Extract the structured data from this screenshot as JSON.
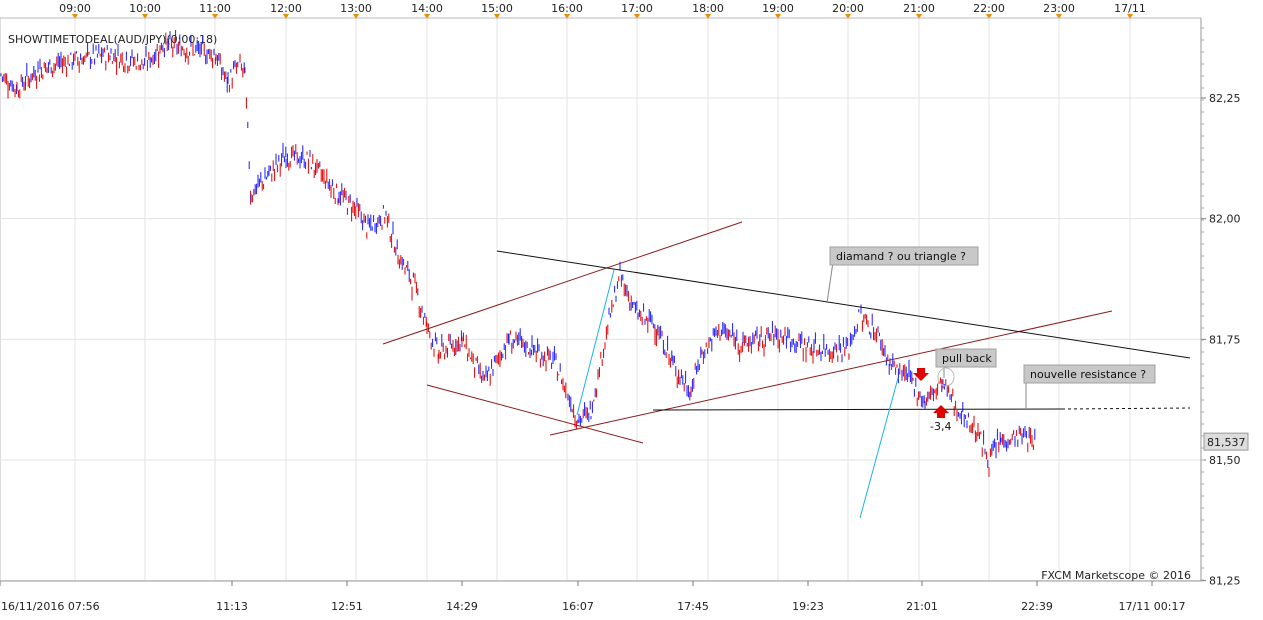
{
  "chart_data": {
    "type": "candlestick",
    "title": "SHOWTIMETODEAL(AUD/JPY)(0:00:18)",
    "watermark": "FXCM Marketscope © 2016",
    "top_time_ticks": [
      "09:00",
      "10:00",
      "11:00",
      "12:00",
      "13:00",
      "14:00",
      "15:00",
      "16:00",
      "17:00",
      "18:00",
      "19:00",
      "20:00",
      "21:00",
      "22:00",
      "23:00",
      "17/11"
    ],
    "bottom_time_ticks": [
      "16/11/2016 07:56",
      "11:13",
      "12:51",
      "14:29",
      "16:07",
      "17:45",
      "19:23",
      "21:01",
      "22:39",
      "17/11 00:17"
    ],
    "y_ticks": [
      "82,25",
      "82,00",
      "81,75",
      "81,50",
      "81,25"
    ],
    "y_tick_values": [
      82.25,
      82.0,
      81.75,
      81.5,
      81.25
    ],
    "ylim": [
      81.25,
      82.38
    ],
    "last_price_label": "81,537",
    "last_price": 81.537,
    "grid": true,
    "colors": {
      "up": "#1a1aff",
      "down": "#e00000",
      "last_price_bg": "#dddddd",
      "annotation_bg": "#c8c8c8",
      "marker": "#f08c00"
    },
    "annotations": [
      {
        "text": "diamand ? ou  triangle ?"
      },
      {
        "text": "pull back"
      },
      {
        "text": "nouvelle resistance ?"
      },
      {
        "text": "-3,4"
      }
    ],
    "price_path": [
      [
        "16/11 07:56",
        82.3
      ],
      [
        "08:10",
        82.27
      ],
      [
        "08:30",
        82.31
      ],
      [
        "09:00",
        82.33
      ],
      [
        "09:30",
        82.34
      ],
      [
        "10:00",
        82.32
      ],
      [
        "10:15",
        82.36
      ],
      [
        "10:40",
        82.35
      ],
      [
        "11:00",
        82.34
      ],
      [
        "11:10",
        82.28
      ],
      [
        "11:20",
        82.32
      ],
      [
        "11:25",
        82.3
      ],
      [
        "11:30",
        82.05
      ],
      [
        "11:45",
        82.09
      ],
      [
        "12:00",
        82.13
      ],
      [
        "12:20",
        82.12
      ],
      [
        "12:45",
        82.05
      ],
      [
        "13:00",
        82.02
      ],
      [
        "13:10",
        81.98
      ],
      [
        "13:25",
        82.01
      ],
      [
        "13:35",
        81.93
      ],
      [
        "13:50",
        81.86
      ],
      [
        "14:00",
        81.78
      ],
      [
        "14:10",
        81.72
      ],
      [
        "14:30",
        81.75
      ],
      [
        "14:50",
        81.66
      ],
      [
        "15:10",
        81.75
      ],
      [
        "15:30",
        81.73
      ],
      [
        "15:50",
        81.7
      ],
      [
        "16:00",
        81.64
      ],
      [
        "16:10",
        81.58
      ],
      [
        "16:20",
        81.6
      ],
      [
        "16:35",
        81.78
      ],
      [
        "16:45",
        81.88
      ],
      [
        "17:00",
        81.8
      ],
      [
        "17:15",
        81.78
      ],
      [
        "17:30",
        81.7
      ],
      [
        "17:45",
        81.64
      ],
      [
        "17:55",
        81.72
      ],
      [
        "18:10",
        81.77
      ],
      [
        "18:30",
        81.74
      ],
      [
        "19:00",
        81.76
      ],
      [
        "19:30",
        81.73
      ],
      [
        "20:00",
        81.73
      ],
      [
        "20:10",
        81.8
      ],
      [
        "20:25",
        81.76
      ],
      [
        "20:35",
        81.7
      ],
      [
        "20:45",
        81.68
      ],
      [
        "20:55",
        81.66
      ],
      [
        "21:05",
        81.62
      ],
      [
        "21:20",
        81.66
      ],
      [
        "21:35",
        81.6
      ],
      [
        "21:50",
        81.56
      ],
      [
        "22:00",
        81.5
      ],
      [
        "22:10",
        81.54
      ],
      [
        "22:30",
        81.55
      ],
      [
        "22:40",
        81.537
      ]
    ]
  }
}
